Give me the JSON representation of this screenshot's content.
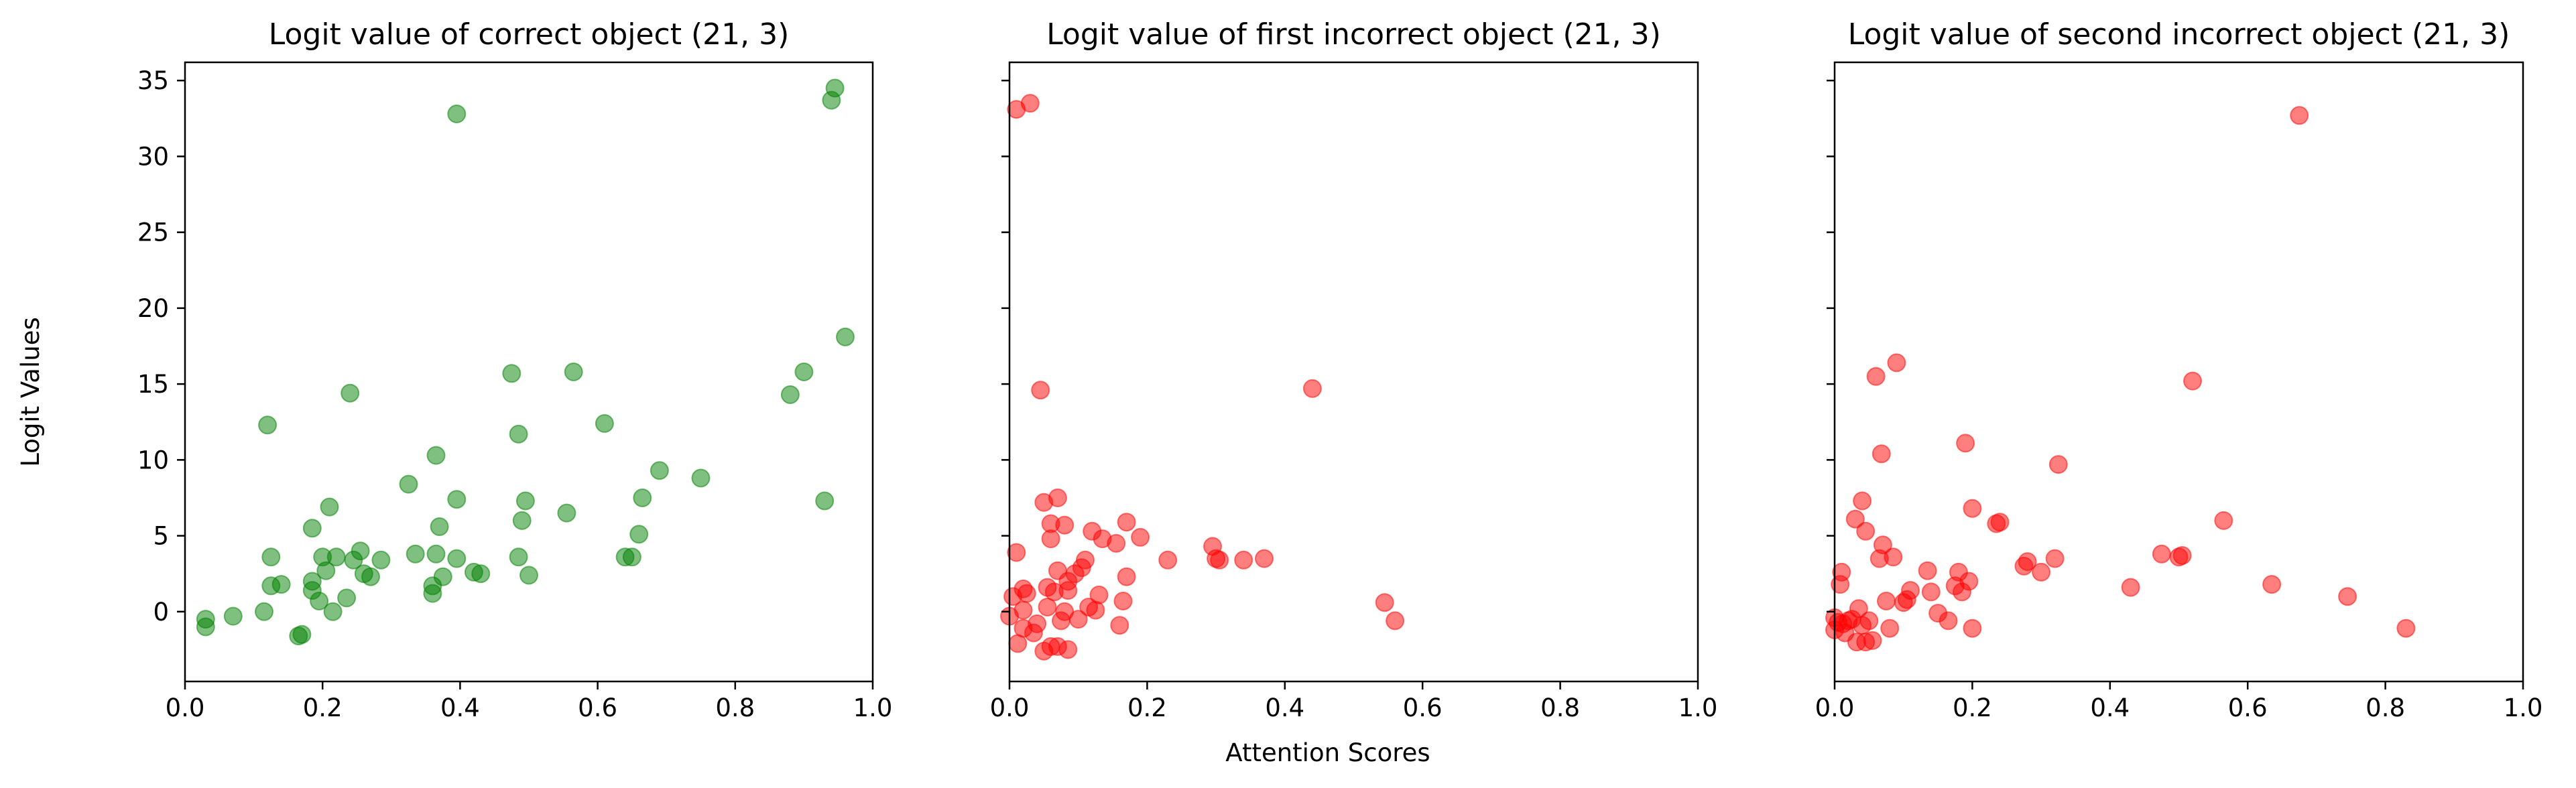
{
  "figure": {
    "xlabel": "Attention Scores",
    "ylabel": "Logit Values"
  },
  "chart_data": [
    {
      "type": "scatter",
      "title": "Logit value of correct object (21, 3)",
      "color": "#008000",
      "xlim": [
        0.0,
        1.0
      ],
      "ylim": [
        -4.6,
        36.2
      ],
      "xticks": [
        "0.0",
        "0.2",
        "0.4",
        "0.6",
        "0.8",
        "1.0"
      ],
      "yticks": [
        "0",
        "5",
        "10",
        "15",
        "20",
        "25",
        "30",
        "35"
      ],
      "points": [
        [
          0.03,
          -1.0
        ],
        [
          0.03,
          -0.5
        ],
        [
          0.07,
          -0.3
        ],
        [
          0.115,
          0.0
        ],
        [
          0.12,
          12.3
        ],
        [
          0.125,
          3.6
        ],
        [
          0.125,
          1.7
        ],
        [
          0.14,
          1.8
        ],
        [
          0.165,
          -1.6
        ],
        [
          0.17,
          -1.5
        ],
        [
          0.185,
          1.4
        ],
        [
          0.185,
          2.0
        ],
        [
          0.185,
          5.5
        ],
        [
          0.195,
          0.7
        ],
        [
          0.2,
          3.6
        ],
        [
          0.205,
          2.7
        ],
        [
          0.21,
          6.9
        ],
        [
          0.215,
          0.0
        ],
        [
          0.22,
          3.6
        ],
        [
          0.235,
          0.9
        ],
        [
          0.24,
          14.4
        ],
        [
          0.245,
          3.4
        ],
        [
          0.255,
          4.0
        ],
        [
          0.26,
          2.5
        ],
        [
          0.27,
          2.3
        ],
        [
          0.285,
          3.4
        ],
        [
          0.325,
          8.4
        ],
        [
          0.335,
          3.8
        ],
        [
          0.36,
          1.2
        ],
        [
          0.36,
          1.7
        ],
        [
          0.365,
          3.8
        ],
        [
          0.365,
          10.3
        ],
        [
          0.37,
          5.6
        ],
        [
          0.375,
          2.3
        ],
        [
          0.395,
          3.5
        ],
        [
          0.395,
          7.4
        ],
        [
          0.395,
          32.8
        ],
        [
          0.42,
          2.6
        ],
        [
          0.43,
          2.5
        ],
        [
          0.475,
          15.7
        ],
        [
          0.485,
          11.7
        ],
        [
          0.485,
          3.6
        ],
        [
          0.49,
          6.0
        ],
        [
          0.495,
          7.3
        ],
        [
          0.5,
          2.4
        ],
        [
          0.555,
          6.5
        ],
        [
          0.565,
          15.8
        ],
        [
          0.61,
          12.4
        ],
        [
          0.64,
          3.6
        ],
        [
          0.65,
          3.6
        ],
        [
          0.66,
          5.1
        ],
        [
          0.665,
          7.5
        ],
        [
          0.69,
          9.3
        ],
        [
          0.75,
          8.8
        ],
        [
          0.88,
          14.3
        ],
        [
          0.9,
          15.8
        ],
        [
          0.93,
          7.3
        ],
        [
          0.94,
          33.7
        ],
        [
          0.945,
          34.5
        ],
        [
          0.96,
          18.1
        ]
      ]
    },
    {
      "type": "scatter",
      "title": "Logit value of first incorrect object (21, 3)",
      "color": "#ff0000",
      "xlim": [
        0.0,
        1.0
      ],
      "ylim": [
        -4.6,
        36.2
      ],
      "xticks": [
        "0.0",
        "0.2",
        "0.4",
        "0.6",
        "0.8",
        "1.0"
      ],
      "yticks": [],
      "points": [
        [
          0.0,
          -0.3
        ],
        [
          0.005,
          1.0
        ],
        [
          0.01,
          3.9
        ],
        [
          0.01,
          33.1
        ],
        [
          0.012,
          -2.1
        ],
        [
          0.02,
          1.5
        ],
        [
          0.02,
          -1.1
        ],
        [
          0.02,
          0.1
        ],
        [
          0.025,
          1.2
        ],
        [
          0.03,
          33.5
        ],
        [
          0.035,
          -1.4
        ],
        [
          0.04,
          -0.8
        ],
        [
          0.045,
          14.6
        ],
        [
          0.05,
          -2.6
        ],
        [
          0.05,
          7.2
        ],
        [
          0.055,
          1.6
        ],
        [
          0.055,
          0.3
        ],
        [
          0.06,
          -2.3
        ],
        [
          0.06,
          4.8
        ],
        [
          0.06,
          5.8
        ],
        [
          0.065,
          1.3
        ],
        [
          0.07,
          2.7
        ],
        [
          0.07,
          -2.3
        ],
        [
          0.07,
          7.5
        ],
        [
          0.075,
          -0.6
        ],
        [
          0.08,
          0.0
        ],
        [
          0.08,
          5.7
        ],
        [
          0.085,
          -2.5
        ],
        [
          0.085,
          2.0
        ],
        [
          0.085,
          1.4
        ],
        [
          0.095,
          2.5
        ],
        [
          0.1,
          -0.5
        ],
        [
          0.105,
          2.9
        ],
        [
          0.11,
          3.4
        ],
        [
          0.115,
          0.3
        ],
        [
          0.12,
          5.3
        ],
        [
          0.125,
          0.1
        ],
        [
          0.13,
          1.1
        ],
        [
          0.135,
          4.8
        ],
        [
          0.155,
          4.5
        ],
        [
          0.16,
          -0.9
        ],
        [
          0.165,
          0.7
        ],
        [
          0.17,
          5.9
        ],
        [
          0.17,
          2.3
        ],
        [
          0.19,
          4.9
        ],
        [
          0.23,
          3.4
        ],
        [
          0.295,
          4.3
        ],
        [
          0.3,
          3.5
        ],
        [
          0.305,
          3.4
        ],
        [
          0.34,
          3.4
        ],
        [
          0.37,
          3.5
        ],
        [
          0.44,
          14.7
        ],
        [
          0.545,
          0.6
        ],
        [
          0.56,
          -0.6
        ]
      ]
    },
    {
      "type": "scatter",
      "title": "Logit value of second incorrect object (21, 3)",
      "color": "#ff0000",
      "xlim": [
        0.0,
        1.0
      ],
      "ylim": [
        -4.6,
        36.2
      ],
      "xticks": [
        "0.0",
        "0.2",
        "0.4",
        "0.6",
        "0.8",
        "1.0"
      ],
      "yticks": [],
      "points": [
        [
          0.0,
          -1.2
        ],
        [
          0.0,
          -0.4
        ],
        [
          0.005,
          -0.7
        ],
        [
          0.008,
          1.8
        ],
        [
          0.01,
          2.6
        ],
        [
          0.012,
          -0.8
        ],
        [
          0.015,
          -1.4
        ],
        [
          0.02,
          -0.6
        ],
        [
          0.025,
          -0.5
        ],
        [
          0.03,
          6.1
        ],
        [
          0.032,
          -2.0
        ],
        [
          0.035,
          0.2
        ],
        [
          0.04,
          7.3
        ],
        [
          0.04,
          -0.9
        ],
        [
          0.045,
          5.3
        ],
        [
          0.045,
          -2.0
        ],
        [
          0.05,
          -0.6
        ],
        [
          0.055,
          -1.9
        ],
        [
          0.06,
          15.5
        ],
        [
          0.065,
          3.5
        ],
        [
          0.068,
          10.4
        ],
        [
          0.07,
          4.4
        ],
        [
          0.075,
          0.7
        ],
        [
          0.08,
          -1.1
        ],
        [
          0.085,
          3.6
        ],
        [
          0.09,
          16.4
        ],
        [
          0.1,
          0.6
        ],
        [
          0.105,
          0.8
        ],
        [
          0.11,
          1.4
        ],
        [
          0.135,
          2.7
        ],
        [
          0.14,
          1.3
        ],
        [
          0.15,
          -0.1
        ],
        [
          0.165,
          -0.6
        ],
        [
          0.175,
          1.7
        ],
        [
          0.18,
          2.6
        ],
        [
          0.185,
          1.3
        ],
        [
          0.19,
          11.1
        ],
        [
          0.195,
          2.0
        ],
        [
          0.2,
          6.8
        ],
        [
          0.2,
          -1.1
        ],
        [
          0.235,
          5.8
        ],
        [
          0.24,
          5.9
        ],
        [
          0.275,
          3.0
        ],
        [
          0.28,
          3.3
        ],
        [
          0.3,
          2.6
        ],
        [
          0.32,
          3.5
        ],
        [
          0.325,
          9.7
        ],
        [
          0.43,
          1.6
        ],
        [
          0.475,
          3.8
        ],
        [
          0.5,
          3.6
        ],
        [
          0.505,
          3.7
        ],
        [
          0.52,
          15.2
        ],
        [
          0.565,
          6.0
        ],
        [
          0.635,
          1.8
        ],
        [
          0.675,
          32.7
        ],
        [
          0.745,
          1.0
        ],
        [
          0.83,
          -1.1
        ]
      ]
    }
  ]
}
